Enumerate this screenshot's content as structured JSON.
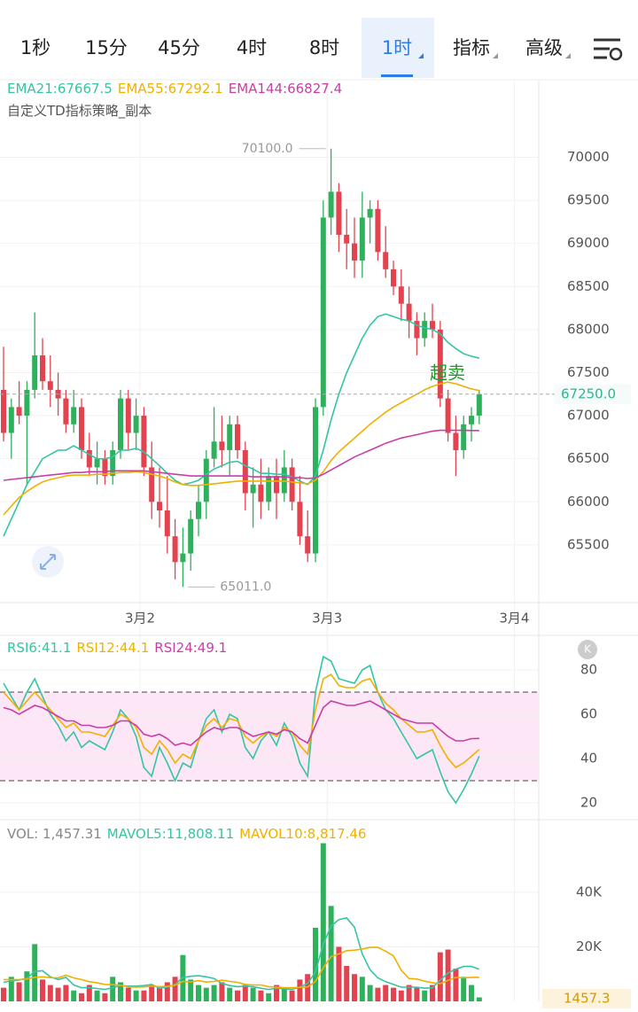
{
  "tabs": [
    "1秒",
    "15分",
    "45分",
    "4时",
    "8时",
    "1时",
    "指标",
    "高级"
  ],
  "active_tab": 5,
  "chart_data": [
    {
      "type": "candlestick",
      "subtitle": "自定义TD指标策略_副本",
      "annotation": "超卖",
      "up_color": "#2db15b",
      "down_color": "#e2434f",
      "ylim": [
        64830,
        70900
      ],
      "yticks": [
        65500,
        66000,
        66500,
        67000,
        67500,
        68000,
        68500,
        69000,
        69500,
        70000
      ],
      "xticks": [
        {
          "value": 17.5,
          "label": "3月2"
        },
        {
          "value": 41.5,
          "label": "3月3"
        },
        {
          "value": 65.5,
          "label": "3月4"
        }
      ],
      "high_label": {
        "value": 70100,
        "label": "70100.0"
      },
      "low_label": {
        "value": 65011,
        "label": "65011.0"
      },
      "last_price": {
        "value": 67250,
        "label": "67250.0"
      },
      "ohlc": [
        [
          67300,
          67800,
          66700,
          66800
        ],
        [
          66800,
          67200,
          66500,
          67100
        ],
        [
          67100,
          67400,
          66900,
          67000
        ],
        [
          67000,
          67400,
          66200,
          67300
        ],
        [
          67300,
          68200,
          67200,
          67700
        ],
        [
          67700,
          67900,
          67300,
          67400
        ],
        [
          67400,
          67700,
          67100,
          67300
        ],
        [
          67300,
          67500,
          67000,
          67200
        ],
        [
          67200,
          67300,
          66800,
          66900
        ],
        [
          66900,
          67300,
          66800,
          67100
        ],
        [
          67100,
          67200,
          66500,
          66600
        ],
        [
          66600,
          66800,
          66300,
          66400
        ],
        [
          66400,
          66700,
          66200,
          66500
        ],
        [
          66500,
          66600,
          66200,
          66300
        ],
        [
          66300,
          66700,
          66200,
          66600
        ],
        [
          66600,
          67300,
          66500,
          67200
        ],
        [
          67200,
          67300,
          66600,
          66800
        ],
        [
          66800,
          67200,
          66600,
          67000
        ],
        [
          67000,
          67100,
          66300,
          66400
        ],
        [
          66400,
          66700,
          65800,
          66000
        ],
        [
          66000,
          66400,
          65700,
          65900
        ],
        [
          65900,
          66300,
          65400,
          65600
        ],
        [
          65600,
          65800,
          65100,
          65300
        ],
        [
          65300,
          65700,
          65011,
          65400
        ],
        [
          65400,
          65900,
          65200,
          65800
        ],
        [
          65800,
          66200,
          65600,
          66000
        ],
        [
          66000,
          66600,
          65800,
          66500
        ],
        [
          66500,
          67100,
          66400,
          66700
        ],
        [
          66700,
          67000,
          66400,
          66600
        ],
        [
          66600,
          67000,
          66300,
          66900
        ],
        [
          66900,
          67000,
          66500,
          66600
        ],
        [
          66600,
          66700,
          65900,
          66100
        ],
        [
          66100,
          66400,
          65700,
          66200
        ],
        [
          66200,
          66500,
          65800,
          66000
        ],
        [
          66000,
          66400,
          65900,
          66300
        ],
        [
          66300,
          66500,
          65800,
          66100
        ],
        [
          66100,
          66600,
          66000,
          66400
        ],
        [
          66400,
          66500,
          65900,
          66000
        ],
        [
          66000,
          66300,
          65500,
          65600
        ],
        [
          65600,
          65900,
          65300,
          65400
        ],
        [
          65400,
          67200,
          65300,
          67100
        ],
        [
          67100,
          69500,
          67000,
          69300
        ],
        [
          69300,
          70100,
          69100,
          69600
        ],
        [
          69600,
          69700,
          68900,
          69100
        ],
        [
          69100,
          69400,
          68700,
          69000
        ],
        [
          69000,
          69300,
          68600,
          68800
        ],
        [
          68800,
          69600,
          68600,
          69300
        ],
        [
          69300,
          69500,
          69000,
          69400
        ],
        [
          69400,
          69500,
          68800,
          68900
        ],
        [
          68900,
          69200,
          68600,
          68700
        ],
        [
          68700,
          68800,
          68400,
          68500
        ],
        [
          68500,
          68700,
          68100,
          68300
        ],
        [
          68300,
          68500,
          67900,
          68100
        ],
        [
          68100,
          68200,
          67700,
          67900
        ],
        [
          67900,
          68200,
          67800,
          68100
        ],
        [
          68100,
          68300,
          67900,
          68000
        ],
        [
          68000,
          68100,
          67100,
          67200
        ],
        [
          67200,
          67300,
          66700,
          66800
        ],
        [
          66800,
          67000,
          66300,
          66600
        ],
        [
          66600,
          67000,
          66500,
          66900
        ],
        [
          66900,
          67100,
          66700,
          67000
        ],
        [
          67000,
          67300,
          66900,
          67250
        ]
      ],
      "series": [
        {
          "label": "EMA21:67667.5",
          "color": "#35c4a4",
          "values": [
            65600,
            65800,
            66000,
            66200,
            66350,
            66500,
            66550,
            66600,
            66600,
            66650,
            66600,
            66550,
            66500,
            66500,
            66520,
            66600,
            66600,
            66620,
            66580,
            66500,
            66420,
            66330,
            66250,
            66200,
            66220,
            66250,
            66320,
            66380,
            66420,
            66460,
            66470,
            66420,
            66380,
            66330,
            66330,
            66320,
            66320,
            66290,
            66240,
            66200,
            66300,
            66600,
            66950,
            67250,
            67500,
            67700,
            67900,
            68050,
            68150,
            68180,
            68150,
            68120,
            68100,
            68050,
            68020,
            68000,
            67950,
            67850,
            67780,
            67720,
            67690,
            67667.5
          ]
        },
        {
          "label": "EMA55:67292.1",
          "color": "#f0b000",
          "values": [
            65850,
            65950,
            66050,
            66120,
            66180,
            66230,
            66260,
            66280,
            66300,
            66310,
            66310,
            66310,
            66320,
            66320,
            66330,
            66340,
            66340,
            66350,
            66340,
            66320,
            66300,
            66270,
            66230,
            66200,
            66190,
            66190,
            66200,
            66210,
            66220,
            66230,
            66240,
            66240,
            66240,
            66240,
            66240,
            66240,
            66240,
            66230,
            66220,
            66210,
            66250,
            66350,
            66480,
            66580,
            66660,
            66740,
            66820,
            66900,
            66970,
            67040,
            67100,
            67150,
            67200,
            67250,
            67300,
            67340,
            67370,
            67390,
            67370,
            67340,
            67310,
            67292.1
          ]
        },
        {
          "label": "EMA144:66827.4",
          "color": "#c93ea6",
          "values": [
            66250,
            66260,
            66270,
            66280,
            66290,
            66300,
            66310,
            66320,
            66330,
            66340,
            66340,
            66350,
            66350,
            66350,
            66360,
            66360,
            66360,
            66360,
            66360,
            66350,
            66340,
            66330,
            66320,
            66310,
            66300,
            66300,
            66300,
            66300,
            66300,
            66300,
            66300,
            66300,
            66290,
            66290,
            66290,
            66290,
            66290,
            66280,
            66280,
            66270,
            66280,
            66320,
            66370,
            66420,
            66470,
            66520,
            66560,
            66600,
            66640,
            66680,
            66710,
            66740,
            66760,
            66780,
            66800,
            66820,
            66830,
            66830,
            66830,
            66830,
            66828,
            66827.4
          ]
        }
      ]
    },
    {
      "type": "line",
      "ylim": [
        12.4,
        94.4
      ],
      "yticks": [
        20,
        40,
        60,
        80
      ],
      "bands": [
        30,
        70
      ],
      "series": [
        {
          "label": "RSI6:41.1",
          "color": "#35c4a4",
          "values": [
            74,
            68,
            62,
            70,
            76,
            68,
            60,
            55,
            48,
            52,
            45,
            48,
            46,
            44,
            52,
            62,
            58,
            50,
            36,
            32,
            45,
            38,
            30,
            38,
            36,
            48,
            58,
            62,
            52,
            60,
            58,
            45,
            40,
            48,
            52,
            46,
            56,
            50,
            38,
            32,
            70,
            86,
            84,
            76,
            75,
            74,
            80,
            82,
            70,
            62,
            58,
            52,
            46,
            40,
            42,
            44,
            34,
            25,
            20,
            26,
            33,
            41.1
          ]
        },
        {
          "label": "RSI12:44.1",
          "color": "#f0b000",
          "values": [
            70,
            66,
            62,
            66,
            70,
            66,
            62,
            58,
            54,
            56,
            52,
            52,
            51,
            50,
            55,
            60,
            58,
            54,
            45,
            42,
            48,
            44,
            38,
            42,
            40,
            48,
            55,
            58,
            54,
            58,
            57,
            50,
            47,
            50,
            52,
            50,
            54,
            52,
            46,
            42,
            62,
            76,
            78,
            73,
            72,
            72,
            75,
            76,
            70,
            65,
            62,
            58,
            55,
            52,
            52,
            53,
            46,
            40,
            36,
            38,
            41,
            44.1
          ]
        },
        {
          "label": "RSI24:49.1",
          "color": "#c93ea6",
          "values": [
            63,
            62,
            60,
            62,
            64,
            63,
            61,
            59,
            57,
            57,
            55,
            55,
            54,
            54,
            55,
            57,
            57,
            55,
            51,
            50,
            51,
            49,
            46,
            47,
            46,
            49,
            52,
            54,
            53,
            54,
            54,
            52,
            50,
            51,
            52,
            51,
            53,
            52,
            49,
            47,
            55,
            63,
            66,
            65,
            64,
            64,
            65,
            66,
            64,
            62,
            60,
            58,
            57,
            56,
            56,
            56,
            53,
            50,
            48,
            48,
            49,
            49.1
          ]
        }
      ]
    },
    {
      "type": "bar",
      "label": "VOL: 1,457.31",
      "last_label": "1457.3",
      "ylim": [
        0,
        65000
      ],
      "yticks": [
        {
          "value": 20000,
          "label": "20K"
        },
        {
          "value": 40000,
          "label": "40K"
        }
      ],
      "values": [
        5000,
        9000,
        7000,
        11000,
        21000,
        8000,
        6000,
        5000,
        6000,
        4000,
        3000,
        6000,
        4000,
        3000,
        9000,
        7000,
        5000,
        4000,
        4000,
        6000,
        5000,
        7000,
        9000,
        17000,
        8000,
        6000,
        5000,
        6000,
        7000,
        5000,
        4000,
        6000,
        5000,
        4000,
        3000,
        6000,
        5000,
        4000,
        8000,
        10000,
        27000,
        58000,
        35000,
        20000,
        13000,
        10000,
        9000,
        6000,
        5000,
        6000,
        5000,
        4000,
        6000,
        5000,
        4000,
        6000,
        18000,
        19000,
        12000,
        9000,
        6000,
        1457.31
      ],
      "series": [
        {
          "label": "MAVOL5:11,808.11",
          "color": "#35c4a4",
          "values": [
            7000,
            7500,
            7800,
            8500,
            11000,
            11200,
            9000,
            8000,
            8800,
            6000,
            5000,
            5000,
            4700,
            4400,
            5000,
            5800,
            5600,
            5600,
            5800,
            6200,
            4800,
            5200,
            6200,
            8800,
            9200,
            9400,
            9000,
            8400,
            6600,
            5800,
            5400,
            5600,
            5400,
            4800,
            4400,
            4800,
            4600,
            4400,
            5200,
            6600,
            10800,
            21000,
            27600,
            30000,
            30600,
            27200,
            17400,
            11600,
            8600,
            7200,
            6200,
            5200,
            5200,
            5200,
            4800,
            5000,
            7800,
            10400,
            11800,
            12800,
            12800,
            11808.11
          ]
        },
        {
          "label": "MAVOL10:8,817.46",
          "color": "#f0b000",
          "values": [
            8000,
            8000,
            8000,
            8200,
            8800,
            9000,
            8700,
            8600,
            9600,
            8600,
            8000,
            7200,
            6800,
            6200,
            6100,
            5900,
            5300,
            5200,
            5300,
            5600,
            5400,
            5500,
            5900,
            7300,
            7100,
            7600,
            7100,
            7300,
            7800,
            7300,
            7000,
            6200,
            6000,
            6000,
            5400,
            5200,
            5000,
            5000,
            5100,
            5300,
            7300,
            12300,
            16400,
            17400,
            18600,
            18800,
            19200,
            19800,
            19800,
            18400,
            16700,
            11400,
            8400,
            8200,
            7400,
            6800,
            6500,
            7700,
            8800,
            8600,
            8800,
            8817.46
          ]
        }
      ]
    }
  ]
}
